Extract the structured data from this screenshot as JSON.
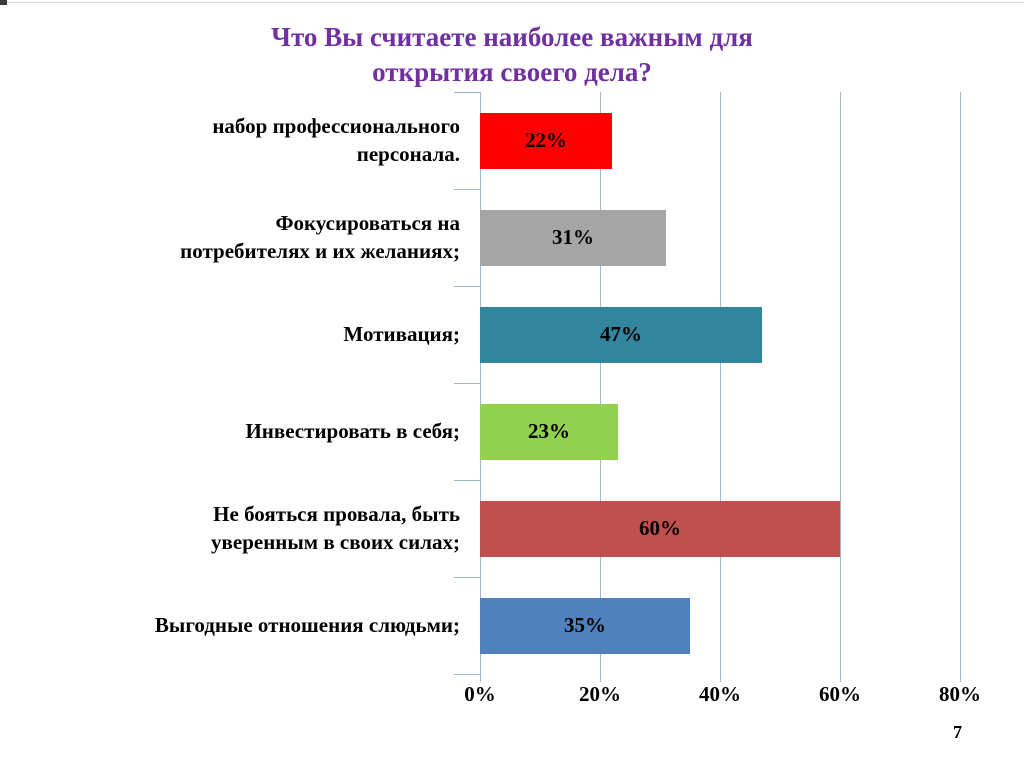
{
  "slide": {
    "page_number": "7",
    "background": "#FFFFFF"
  },
  "chart_data": {
    "type": "bar",
    "orientation": "horizontal",
    "title": "Что Вы считаете наиболее важным для\nоткрытия своего дела?",
    "title_color": "#7030A0",
    "categories": [
      "набор профессионального\nперсонала.",
      "Фокусироваться на\nпотребителях и их желаниях;",
      "Мотивация;",
      "Инвестировать в себя;",
      "Не бояться провала, быть\nуверенным в своих силах;",
      "Выгодные отношения слюдьми;"
    ],
    "values": [
      22,
      31,
      47,
      23,
      60,
      35
    ],
    "value_labels": [
      "22%",
      "31%",
      "47%",
      "23%",
      "60%",
      "35%"
    ],
    "bar_colors": [
      "#FF0000",
      "#A5A5A5",
      "#31859C",
      "#92D050",
      "#C0504D",
      "#4F81BD"
    ],
    "x_tick_labels": [
      "0%",
      "20%",
      "40%",
      "60%",
      "80%"
    ],
    "x_tick_values": [
      0,
      20,
      40,
      60,
      80
    ],
    "xlim": [
      0,
      85
    ],
    "grid": "vertical",
    "grid_color": "#9DB7CE",
    "legend": "none"
  }
}
